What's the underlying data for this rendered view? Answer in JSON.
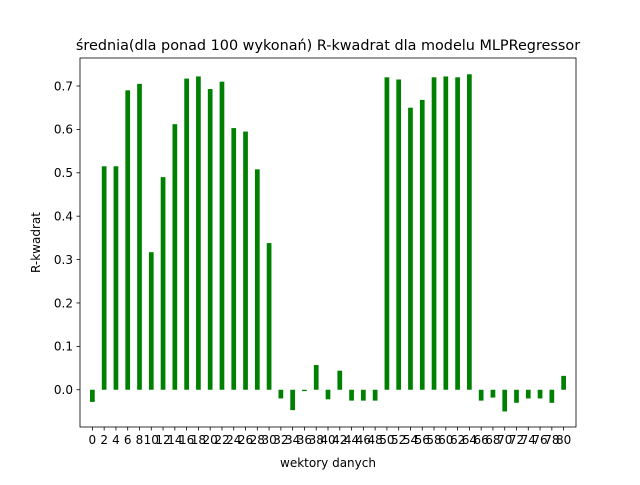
{
  "chart_data": {
    "type": "bar",
    "title": "średnia(dla ponad 100 wykonań) R-kwadrat dla modelu MLPRegressor",
    "xlabel": "wektory danych",
    "ylabel": "R-kwadrat",
    "x": [
      0,
      2,
      4,
      6,
      8,
      10,
      12,
      14,
      16,
      18,
      20,
      22,
      24,
      26,
      28,
      30,
      32,
      34,
      36,
      38,
      40,
      42,
      44,
      46,
      48,
      50,
      52,
      54,
      56,
      58,
      60,
      62,
      64,
      66,
      68,
      70,
      72,
      74,
      76,
      78,
      80
    ],
    "x_tick_labels": [
      "0",
      "2",
      "4",
      "6",
      "8",
      "10",
      "12",
      "14",
      "16",
      "18",
      "20",
      "22",
      "24",
      "26",
      "28",
      "30",
      "32",
      "34",
      "36",
      "38",
      "40",
      "42",
      "44",
      "46",
      "48",
      "50",
      "52",
      "54",
      "56",
      "58",
      "60",
      "62",
      "64",
      "66",
      "68",
      "70",
      "72",
      "74",
      "76",
      "78",
      "80"
    ],
    "values": [
      -0.028,
      0.515,
      0.515,
      0.69,
      0.705,
      0.317,
      0.49,
      0.612,
      0.717,
      0.722,
      0.693,
      0.71,
      0.603,
      0.595,
      0.508,
      0.338,
      -0.02,
      -0.047,
      -0.003,
      0.057,
      -0.022,
      0.044,
      -0.025,
      -0.025,
      -0.025,
      0.72,
      0.715,
      0.65,
      0.668,
      0.72,
      0.722,
      0.72,
      0.727,
      -0.025,
      -0.018,
      -0.05,
      -0.03,
      -0.02,
      -0.02,
      -0.03,
      0.032
    ],
    "y_ticks": [
      0.0,
      0.1,
      0.2,
      0.3,
      0.4,
      0.5,
      0.6,
      0.7
    ],
    "y_tick_labels": [
      "0.0",
      "0.1",
      "0.2",
      "0.3",
      "0.4",
      "0.5",
      "0.6",
      "0.7"
    ],
    "xlim": [
      -2.1,
      82.1
    ],
    "ylim": [
      -0.0858,
      0.7645
    ],
    "bar_color": "#008000",
    "grid": false,
    "legend": false
  }
}
